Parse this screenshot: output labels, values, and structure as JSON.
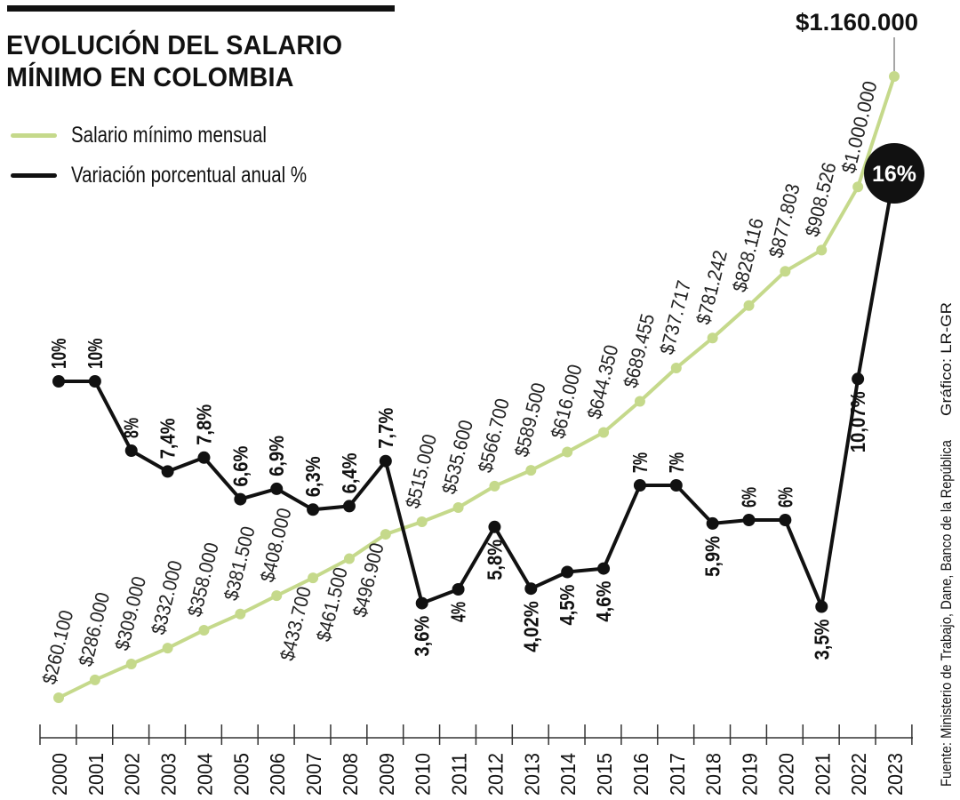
{
  "title_line1": "EVOLUCIÓN DEL SALARIO",
  "title_line2": "MÍNIMO EN COLOMBIA",
  "source": "Fuente: Ministerio de Trabajo, Dane, Banco de la República",
  "credit": "Gráfico: LR-GR",
  "colors": {
    "salary": "#c5d98b",
    "variation": "#111111"
  },
  "chart_data": {
    "type": "line",
    "title": "EVOLUCIÓN DEL SALARIO MÍNIMO EN COLOMBIA",
    "legend": [
      "Salario mínimo mensual",
      "Variación porcentual anual %"
    ],
    "legend_position": "top-left",
    "x": [
      "2000",
      "2001",
      "2002",
      "2003",
      "2004",
      "2005",
      "2006",
      "2007",
      "2008",
      "2009",
      "2010",
      "2011",
      "2012",
      "2013",
      "2014",
      "2015",
      "2016",
      "2017",
      "2018",
      "2019",
      "2020",
      "2021",
      "2022",
      "2023"
    ],
    "series": [
      {
        "name": "Salario mínimo mensual",
        "values": [
          260100,
          286000,
          309000,
          332000,
          358000,
          381500,
          408000,
          433700,
          461500,
          496900,
          515000,
          535600,
          566700,
          589500,
          616000,
          644350,
          689455,
          737717,
          781242,
          828116,
          877803,
          908526,
          1000000,
          1160000
        ],
        "labels": [
          "$260.100",
          "$286.000",
          "$309.000",
          "$332.000",
          "$358.000",
          "$381.500",
          "$408.000",
          "$433.700",
          "$461.500",
          "$496.900",
          "$515.000",
          "$535.600",
          "$566.700",
          "$589.500",
          "$616.000",
          "$644.350",
          "$689.455",
          "$737.717",
          "$781.242",
          "$828.116",
          "$877.803",
          "$908.526",
          "$1.000.000",
          "$1.160.000"
        ]
      },
      {
        "name": "Variación porcentual anual %",
        "values": [
          10,
          10,
          8,
          7.4,
          7.8,
          6.6,
          6.9,
          6.3,
          6.4,
          7.7,
          3.6,
          4,
          5.8,
          4.02,
          4.5,
          4.6,
          7,
          7,
          5.9,
          6,
          6,
          3.5,
          10.07,
          16
        ],
        "labels": [
          "10%",
          "10%",
          "8%",
          "7,4%",
          "7,8%",
          "6,6%",
          "6,9%",
          "6,3%",
          "6,4%",
          "7,7%",
          "3,6%",
          "4%",
          "5,8%",
          "4,02%",
          "4,5%",
          "4,6%",
          "7%",
          "7%",
          "5,9%",
          "6%",
          "6%",
          "3,5%",
          "10,07%",
          "16%"
        ]
      }
    ],
    "grid": false
  }
}
